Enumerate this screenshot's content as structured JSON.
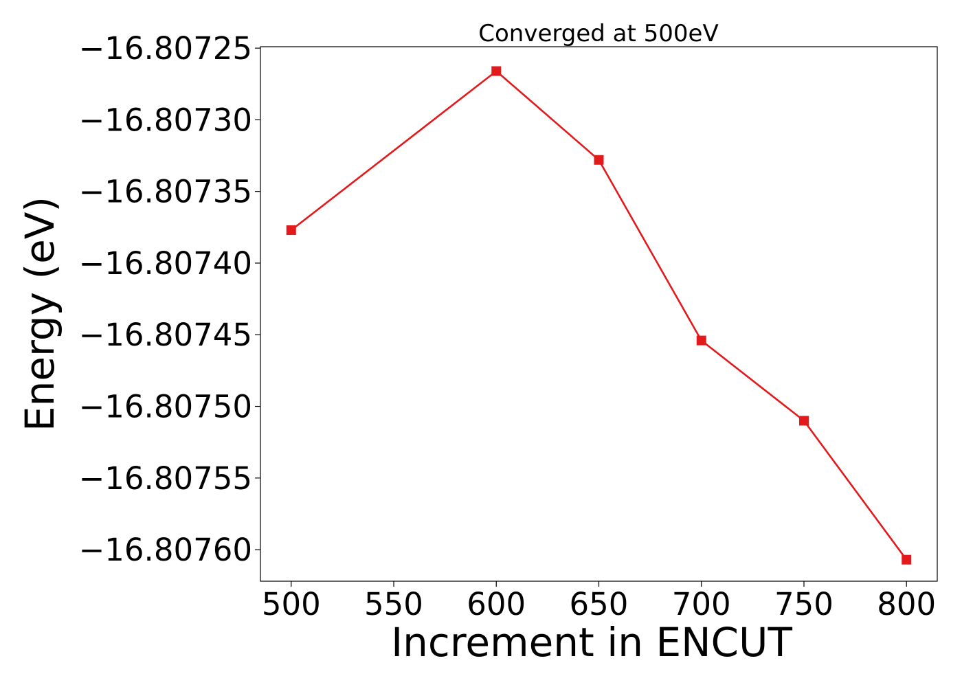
{
  "chart_data": {
    "type": "line",
    "title": "Converged at 500eV",
    "xlabel": "Increment in ENCUT",
    "ylabel": "Energy (eV)",
    "x": [
      500,
      600,
      650,
      700,
      750,
      800
    ],
    "series": [
      {
        "values": [
          -16.807377,
          -16.807266,
          -16.807328,
          -16.807454,
          -16.80751,
          -16.807607
        ],
        "color": "#e31a1c",
        "marker": "square"
      }
    ],
    "xlim": [
      485,
      815
    ],
    "ylim": [
      -16.807622,
      -16.807249
    ],
    "xticks": [
      500,
      550,
      600,
      650,
      700,
      750,
      800
    ],
    "xtick_labels": [
      "500",
      "550",
      "600",
      "650",
      "700",
      "750",
      "800"
    ],
    "yticks": [
      -16.80725,
      -16.8073,
      -16.80735,
      -16.8074,
      -16.80745,
      -16.8075,
      -16.80755,
      -16.8076
    ],
    "ytick_labels": [
      "−16.80725",
      "−16.80730",
      "−16.80735",
      "−16.80740",
      "−16.80745",
      "−16.80750",
      "−16.80755",
      "−16.80760"
    ],
    "grid": false,
    "legend": false
  }
}
